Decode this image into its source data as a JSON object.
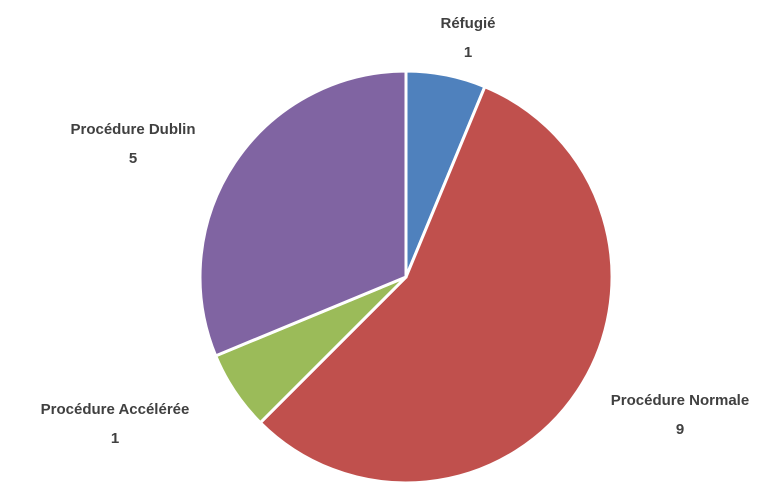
{
  "chart_data": {
    "type": "pie",
    "categories": [
      "Réfugié",
      "Procédure Normale",
      "Procédure Accélérée",
      "Procédure Dublin"
    ],
    "values": [
      1,
      9,
      1,
      5
    ],
    "colors": [
      "#4f81bd",
      "#c0504d",
      "#9bbb59",
      "#8064a2"
    ]
  }
}
